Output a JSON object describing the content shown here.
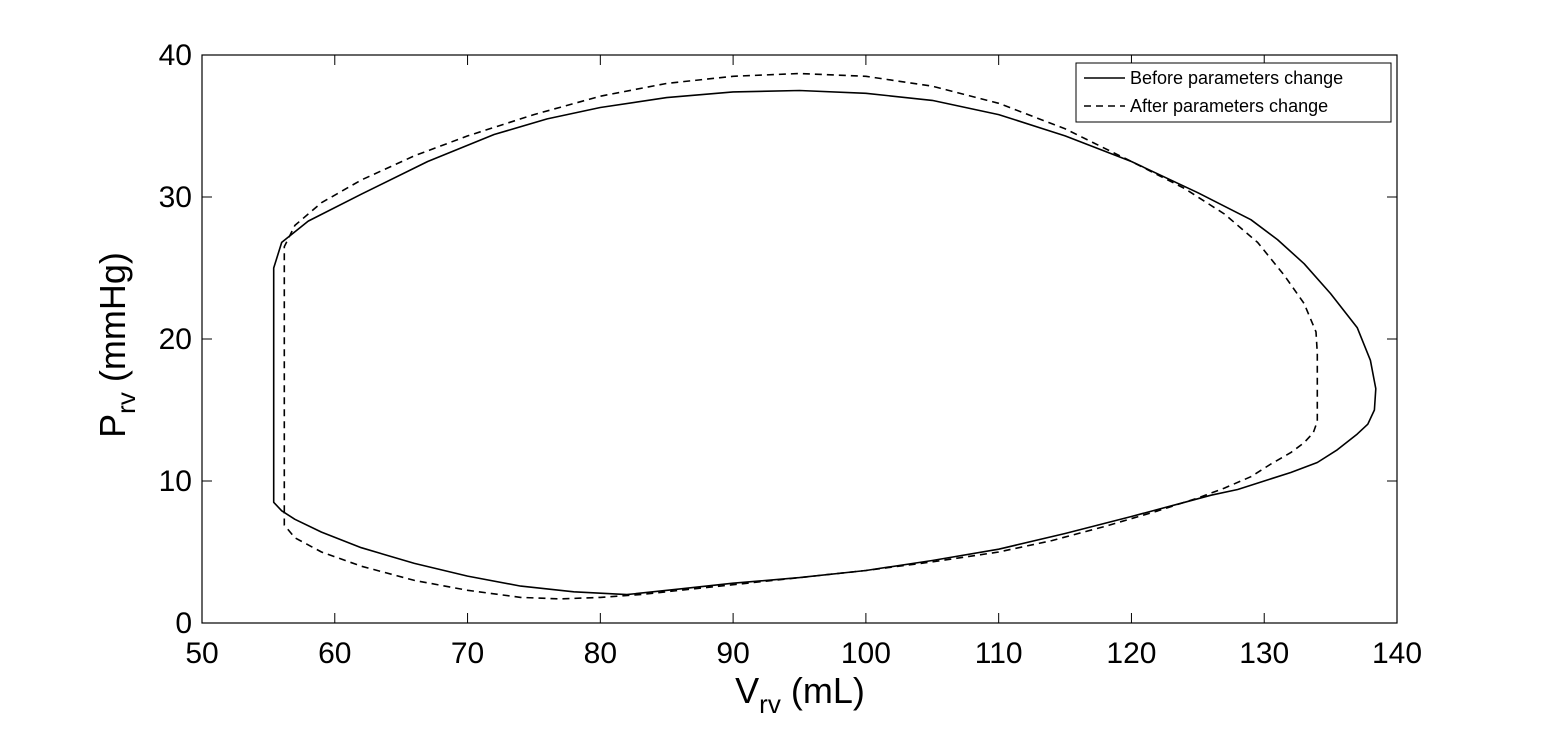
{
  "chart_data": {
    "type": "line",
    "xlabel": {
      "main": "V",
      "sub": "rv",
      "unit": " (mL)"
    },
    "ylabel": {
      "main": "P",
      "sub": "rv",
      "unit": " (mmHg)"
    },
    "xlim": [
      50,
      140
    ],
    "ylim": [
      0,
      40
    ],
    "xticks": [
      "50",
      "60",
      "70",
      "80",
      "90",
      "100",
      "110",
      "120",
      "130",
      "140"
    ],
    "yticks": [
      "0",
      "10",
      "20",
      "30",
      "40"
    ],
    "grid": false,
    "legend_position": "top-right",
    "series": [
      {
        "name": "Before parameters change",
        "style": "solid",
        "color": "#000000",
        "x": [
          55.4,
          55.4,
          56,
          58,
          62,
          67,
          72,
          76,
          80,
          85,
          90,
          95,
          100,
          105,
          110,
          115,
          120,
          125,
          129,
          131,
          133,
          135,
          137,
          138,
          138.4,
          138.3,
          137.8,
          137,
          135.5,
          134,
          132,
          130,
          128,
          126,
          124,
          120,
          115,
          110,
          105,
          100,
          95,
          90,
          86,
          82,
          78,
          74,
          70,
          66,
          62,
          59,
          57,
          56,
          55.4,
          55.4
        ],
        "y": [
          9.0,
          25.0,
          26.8,
          28.3,
          30.2,
          32.5,
          34.4,
          35.5,
          36.3,
          37.0,
          37.4,
          37.5,
          37.3,
          36.8,
          35.8,
          34.3,
          32.5,
          30.3,
          28.4,
          27.0,
          25.3,
          23.2,
          20.8,
          18.5,
          16.5,
          15.0,
          14.0,
          13.3,
          12.2,
          11.3,
          10.6,
          10.0,
          9.4,
          9.0,
          8.5,
          7.5,
          6.3,
          5.2,
          4.4,
          3.7,
          3.2,
          2.8,
          2.4,
          2.0,
          2.2,
          2.6,
          3.3,
          4.2,
          5.3,
          6.4,
          7.3,
          7.9,
          8.5,
          9.0
        ]
      },
      {
        "name": "After parameters change",
        "style": "dashed",
        "color": "#000000",
        "x": [
          56.2,
          56.2,
          57,
          59,
          62,
          66,
          70,
          75,
          80,
          85,
          90,
          95,
          100,
          105,
          110,
          115,
          120,
          124,
          127,
          129.5,
          131.5,
          133,
          133.9,
          134,
          134,
          133.7,
          133,
          132,
          130.5,
          129,
          127,
          125,
          122,
          118,
          114,
          110,
          105,
          100,
          95,
          90,
          86,
          83,
          80,
          77,
          74,
          70,
          66,
          62,
          59,
          57,
          56.2,
          56.2
        ],
        "y": [
          7.8,
          26.5,
          28.0,
          29.6,
          31.2,
          32.9,
          34.3,
          35.8,
          37.1,
          38.0,
          38.5,
          38.7,
          38.5,
          37.8,
          36.6,
          34.8,
          32.5,
          30.6,
          28.8,
          26.8,
          24.5,
          22.5,
          20.5,
          19.0,
          14.2,
          13.4,
          12.7,
          12.0,
          11.2,
          10.3,
          9.5,
          8.8,
          7.9,
          6.8,
          5.8,
          5.0,
          4.3,
          3.7,
          3.2,
          2.7,
          2.3,
          2.0,
          1.8,
          1.7,
          1.8,
          2.3,
          3.0,
          4.0,
          5.0,
          6.0,
          6.9,
          7.8
        ]
      }
    ]
  }
}
